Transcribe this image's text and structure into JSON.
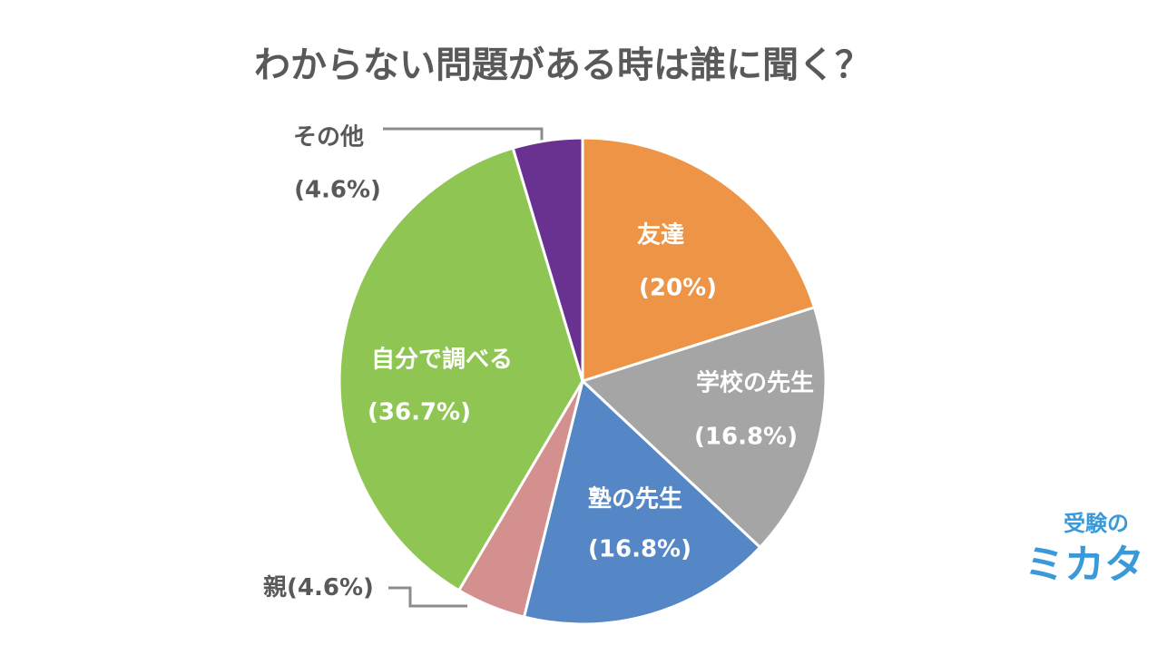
{
  "chart_data": {
    "type": "pie",
    "title": "わからない問題がある時は誰に聞く？",
    "categories": [
      "友達",
      "学校の先生",
      "塾の先生",
      "親",
      "自分で調べる",
      "その他"
    ],
    "values": [
      20,
      16.8,
      16.8,
      4.6,
      36.7,
      4.6
    ],
    "value_labels": [
      "(20%)",
      "(16.8%)",
      "(16.8%)",
      "(4.6%)",
      "(36.7%)",
      "(4.6%)"
    ],
    "colors": [
      "#ED9447",
      "#A5A5A5",
      "#5586C6",
      "#D4908E",
      "#8FC552",
      "#6A3290"
    ]
  },
  "logo": {
    "top": "受験の",
    "bottom": "ミカタ"
  }
}
